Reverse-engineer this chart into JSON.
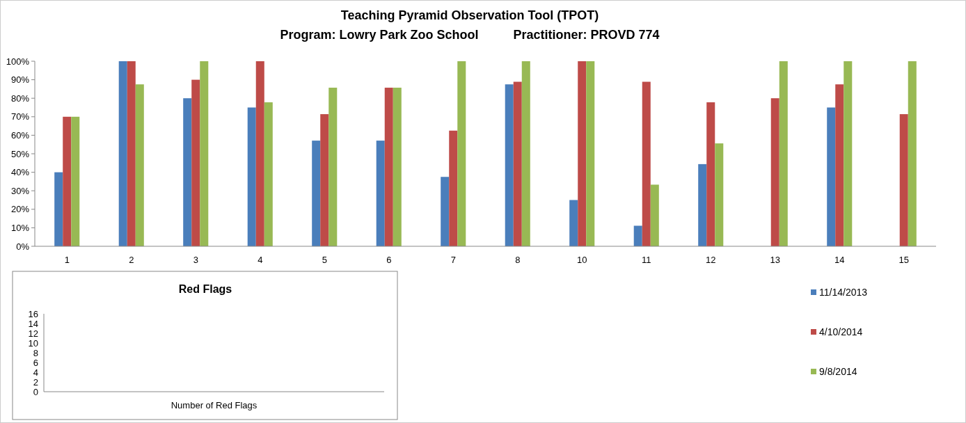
{
  "chart_data": [
    {
      "type": "bar",
      "title": "Teaching Pyramid Observation Tool (TPOT)",
      "subtitle": "Program: Lowry Park Zoo School          Practitioner: PROVD 774",
      "categories": [
        "1",
        "2",
        "3",
        "4",
        "5",
        "6",
        "7",
        "8",
        "10",
        "11",
        "12",
        "13",
        "14",
        "15"
      ],
      "series": [
        {
          "name": "11/14/2013",
          "color": "#4a7ebb",
          "values": [
            40,
            100,
            80,
            75,
            57.1,
            57.1,
            37.5,
            87.5,
            25,
            11.1,
            44.4,
            null,
            75,
            null
          ]
        },
        {
          "name": "4/10/2014",
          "color": "#be4b48",
          "values": [
            70,
            100,
            90,
            100,
            71.4,
            85.7,
            62.5,
            88.9,
            100,
            88.9,
            77.8,
            80,
            87.5,
            71.4
          ]
        },
        {
          "name": "9/8/2014",
          "color": "#98b954",
          "values": [
            70,
            87.5,
            100,
            77.8,
            85.7,
            85.7,
            100,
            100,
            100,
            33.3,
            55.6,
            100,
            100,
            100
          ]
        }
      ],
      "ylim": [
        0,
        100
      ],
      "yticks": [
        {
          "value": 0,
          "label": "0%"
        },
        {
          "value": 10,
          "label": "10%"
        },
        {
          "value": 20,
          "label": "20%"
        },
        {
          "value": 30,
          "label": "30%"
        },
        {
          "value": 40,
          "label": "40%"
        },
        {
          "value": 50,
          "label": "50%"
        },
        {
          "value": 60,
          "label": "60%"
        },
        {
          "value": 70,
          "label": "70%"
        },
        {
          "value": 80,
          "label": "80%"
        },
        {
          "value": 90,
          "label": "90%"
        },
        {
          "value": 100,
          "label": "100%"
        }
      ],
      "legend": "bottom right"
    },
    {
      "type": "bar",
      "title": "Red Flags",
      "categories": [
        "Number of Red Flags"
      ],
      "values": [
        null
      ],
      "ylim": [
        0,
        16
      ],
      "yticks": [
        0,
        2,
        4,
        6,
        8,
        10,
        12,
        14,
        16
      ]
    }
  ]
}
